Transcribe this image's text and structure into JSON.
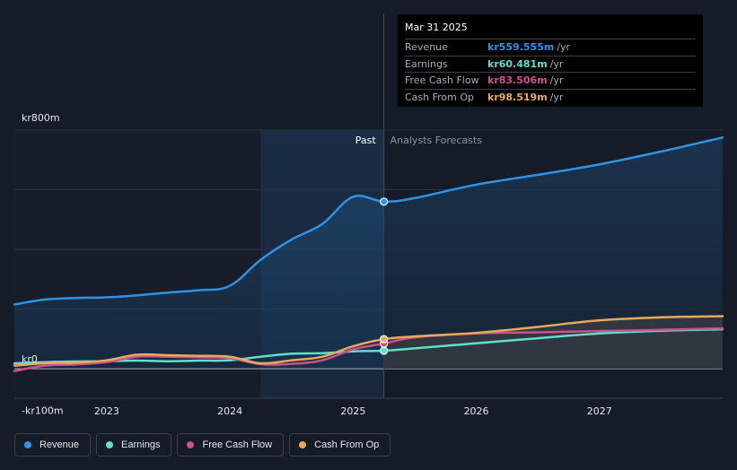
{
  "colors": {
    "background": "#151b27",
    "revenue": "#2e93e6",
    "earnings": "#5ee0cb",
    "free_cash_flow": "#d04f8f",
    "cash_from_op": "#e8a95a",
    "grid": "#2c3340"
  },
  "tooltip": {
    "date": "Mar 31 2025",
    "rows": [
      {
        "name": "Revenue",
        "value": "kr559.555m",
        "unit": "/yr",
        "color": "#2e93e6"
      },
      {
        "name": "Earnings",
        "value": "kr60.481m",
        "unit": "/yr",
        "color": "#5ee0cb"
      },
      {
        "name": "Free Cash Flow",
        "value": "kr83.506m",
        "unit": "/yr",
        "color": "#d04f8f"
      },
      {
        "name": "Cash From Op",
        "value": "kr98.519m",
        "unit": "/yr",
        "color": "#e8a95a"
      }
    ]
  },
  "legend": [
    {
      "label": "Revenue",
      "color": "#2e93e6"
    },
    {
      "label": "Earnings",
      "color": "#5ee0cb"
    },
    {
      "label": "Free Cash Flow",
      "color": "#d04f8f"
    },
    {
      "label": "Cash From Op",
      "color": "#e8a95a"
    }
  ],
  "chart_data": {
    "type": "line",
    "title": "",
    "xlabel": "",
    "ylabel": "",
    "y_unit": "kr m",
    "ylim": [
      -100,
      800
    ],
    "xlim": [
      2022.25,
      2028.0
    ],
    "y_axis_labels": [
      {
        "value": 800,
        "label": "kr800m"
      },
      {
        "value": 0,
        "label": "kr0"
      },
      {
        "value": -100,
        "label": "-kr100m"
      }
    ],
    "x_ticks": [
      {
        "value": 2023,
        "label": "2023"
      },
      {
        "value": 2024,
        "label": "2024"
      },
      {
        "value": 2025,
        "label": "2025"
      },
      {
        "value": 2026,
        "label": "2026"
      },
      {
        "value": 2027,
        "label": "2027"
      }
    ],
    "past_label": "Past",
    "forecast_label": "Analysts Forecasts",
    "divider_x": 2025.25,
    "highlight_start_x": 2024.25,
    "series": [
      {
        "name": "Revenue",
        "key": "revenue",
        "points": [
          [
            2022.25,
            215
          ],
          [
            2022.5,
            232
          ],
          [
            2022.75,
            237
          ],
          [
            2023.0,
            239
          ],
          [
            2023.25,
            246
          ],
          [
            2023.5,
            255
          ],
          [
            2023.75,
            263
          ],
          [
            2024.0,
            278
          ],
          [
            2024.25,
            365
          ],
          [
            2024.5,
            433
          ],
          [
            2024.75,
            485
          ],
          [
            2025.0,
            576
          ],
          [
            2025.25,
            560
          ],
          [
            2025.5,
            572
          ],
          [
            2026.0,
            617
          ],
          [
            2026.5,
            650
          ],
          [
            2027.0,
            685
          ],
          [
            2027.5,
            728
          ],
          [
            2028.0,
            775
          ]
        ]
      },
      {
        "name": "Earnings",
        "key": "earnings",
        "points": [
          [
            2022.25,
            18
          ],
          [
            2022.5,
            22
          ],
          [
            2022.75,
            24
          ],
          [
            2023.0,
            25
          ],
          [
            2023.25,
            27
          ],
          [
            2023.5,
            25
          ],
          [
            2023.75,
            27
          ],
          [
            2024.0,
            28
          ],
          [
            2024.25,
            40
          ],
          [
            2024.5,
            50
          ],
          [
            2024.75,
            52
          ],
          [
            2025.0,
            58
          ],
          [
            2025.25,
            60
          ],
          [
            2025.5,
            68
          ],
          [
            2026.0,
            85
          ],
          [
            2026.5,
            102
          ],
          [
            2027.0,
            118
          ],
          [
            2027.5,
            127
          ],
          [
            2028.0,
            132
          ]
        ]
      },
      {
        "name": "Free Cash Flow",
        "key": "free_cash_flow",
        "points": [
          [
            2022.25,
            -8
          ],
          [
            2022.5,
            10
          ],
          [
            2022.75,
            14
          ],
          [
            2023.0,
            22
          ],
          [
            2023.25,
            40
          ],
          [
            2023.5,
            40
          ],
          [
            2023.75,
            38
          ],
          [
            2024.0,
            35
          ],
          [
            2024.25,
            15
          ],
          [
            2024.5,
            16
          ],
          [
            2024.75,
            28
          ],
          [
            2025.0,
            65
          ],
          [
            2025.25,
            84
          ],
          [
            2025.5,
            105
          ],
          [
            2026.0,
            118
          ],
          [
            2026.5,
            122
          ],
          [
            2027.0,
            126
          ],
          [
            2027.5,
            130
          ],
          [
            2028.0,
            135
          ]
        ]
      },
      {
        "name": "Cash From Op",
        "key": "cash_from_op",
        "points": [
          [
            2022.25,
            10
          ],
          [
            2022.5,
            18
          ],
          [
            2022.75,
            20
          ],
          [
            2023.0,
            28
          ],
          [
            2023.25,
            47
          ],
          [
            2023.5,
            45
          ],
          [
            2023.75,
            43
          ],
          [
            2024.0,
            40
          ],
          [
            2024.25,
            18
          ],
          [
            2024.5,
            28
          ],
          [
            2024.75,
            40
          ],
          [
            2025.0,
            75
          ],
          [
            2025.25,
            99
          ],
          [
            2025.5,
            108
          ],
          [
            2026.0,
            120
          ],
          [
            2026.5,
            140
          ],
          [
            2027.0,
            162
          ],
          [
            2027.5,
            172
          ],
          [
            2028.0,
            176
          ]
        ]
      }
    ],
    "markers": [
      {
        "series": "revenue",
        "x": 2025.25,
        "y": 560
      },
      {
        "series": "earnings",
        "x": 2025.25,
        "y": 60
      },
      {
        "series": "free_cash_flow",
        "x": 2025.25,
        "y": 84
      },
      {
        "series": "cash_from_op",
        "x": 2025.25,
        "y": 99
      }
    ]
  }
}
